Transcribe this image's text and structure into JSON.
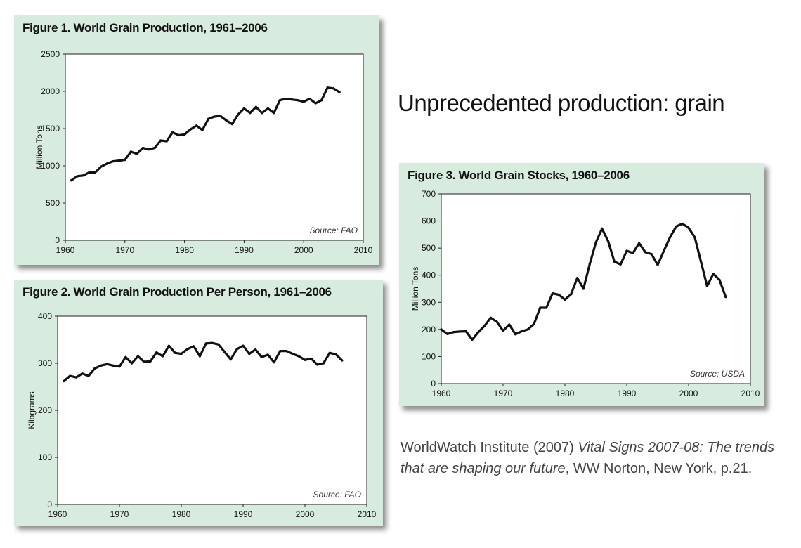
{
  "slide": {
    "title": "Unprecedented production: grain",
    "citation": {
      "author": "WorldWatch Institute (2007) ",
      "work": "Vital Signs 2007-08: The trends that are shaping our future",
      "rest": ", WW Norton, New York, p.21."
    }
  },
  "chart_data": [
    {
      "type": "line",
      "title": "Figure 1. World Grain Production, 1961–2006",
      "ylabel": "Million Tons",
      "source": "Source: FAO",
      "xlim": [
        1960,
        2010
      ],
      "ylim": [
        0,
        2500
      ],
      "xticks": [
        1960,
        1970,
        1980,
        1990,
        2000,
        2010
      ],
      "yticks": [
        0,
        500,
        1000,
        1500,
        2000,
        2500
      ],
      "x": [
        1961,
        1962,
        1963,
        1964,
        1965,
        1966,
        1967,
        1968,
        1969,
        1970,
        1971,
        1972,
        1973,
        1974,
        1975,
        1976,
        1977,
        1978,
        1979,
        1980,
        1981,
        1982,
        1983,
        1984,
        1985,
        1986,
        1987,
        1988,
        1989,
        1990,
        1991,
        1992,
        1993,
        1994,
        1995,
        1996,
        1997,
        1998,
        1999,
        2000,
        2001,
        2002,
        2003,
        2004,
        2005,
        2006
      ],
      "values": [
        805,
        860,
        870,
        910,
        910,
        990,
        1030,
        1060,
        1070,
        1080,
        1190,
        1160,
        1240,
        1220,
        1240,
        1340,
        1330,
        1450,
        1410,
        1420,
        1490,
        1540,
        1480,
        1630,
        1660,
        1670,
        1610,
        1560,
        1690,
        1770,
        1710,
        1790,
        1710,
        1770,
        1710,
        1880,
        1900,
        1890,
        1880,
        1860,
        1900,
        1840,
        1880,
        2050,
        2040,
        1990
      ]
    },
    {
      "type": "line",
      "title": "Figure 2. World Grain Production Per Person, 1961–2006",
      "ylabel": "Kilograms",
      "source": "Source: FAO",
      "xlim": [
        1960,
        2010
      ],
      "ylim": [
        0,
        400
      ],
      "xticks": [
        1960,
        1970,
        1980,
        1990,
        2000,
        2010
      ],
      "yticks": [
        0,
        100,
        200,
        300,
        400
      ],
      "x": [
        1961,
        1962,
        1963,
        1964,
        1965,
        1966,
        1967,
        1968,
        1969,
        1970,
        1971,
        1972,
        1973,
        1974,
        1975,
        1976,
        1977,
        1978,
        1979,
        1980,
        1981,
        1982,
        1983,
        1984,
        1985,
        1986,
        1987,
        1988,
        1989,
        1990,
        1991,
        1992,
        1993,
        1994,
        1995,
        1996,
        1997,
        1998,
        1999,
        2000,
        2001,
        2002,
        2003,
        2004,
        2005,
        2006
      ],
      "values": [
        262,
        273,
        270,
        278,
        273,
        289,
        295,
        298,
        295,
        293,
        313,
        300,
        315,
        303,
        304,
        323,
        315,
        337,
        322,
        320,
        330,
        336,
        315,
        342,
        343,
        340,
        324,
        308,
        330,
        337,
        320,
        329,
        313,
        318,
        302,
        326,
        326,
        320,
        315,
        307,
        310,
        297,
        300,
        322,
        319,
        306
      ]
    },
    {
      "type": "line",
      "title": "Figure 3. World Grain Stocks, 1960–2006",
      "ylabel": "Million Tons",
      "source": "Source: USDA",
      "xlim": [
        1960,
        2010
      ],
      "ylim": [
        0,
        700
      ],
      "xticks": [
        1960,
        1970,
        1980,
        1990,
        2000,
        2010
      ],
      "yticks": [
        0,
        100,
        200,
        300,
        400,
        500,
        600,
        700
      ],
      "x": [
        1960,
        1961,
        1962,
        1963,
        1964,
        1965,
        1966,
        1967,
        1968,
        1969,
        1970,
        1971,
        1972,
        1973,
        1974,
        1975,
        1976,
        1977,
        1978,
        1979,
        1980,
        1981,
        1982,
        1983,
        1984,
        1985,
        1986,
        1987,
        1988,
        1989,
        1990,
        1991,
        1992,
        1993,
        1994,
        1995,
        1996,
        1997,
        1998,
        1999,
        2000,
        2001,
        2002,
        2003,
        2004,
        2005,
        2006
      ],
      "values": [
        200,
        183,
        190,
        192,
        193,
        162,
        190,
        213,
        243,
        228,
        195,
        218,
        182,
        193,
        200,
        220,
        280,
        280,
        333,
        328,
        310,
        330,
        390,
        350,
        440,
        520,
        572,
        525,
        450,
        440,
        490,
        482,
        518,
        485,
        478,
        438,
        490,
        540,
        580,
        590,
        575,
        540,
        450,
        360,
        405,
        383,
        320
      ]
    }
  ]
}
